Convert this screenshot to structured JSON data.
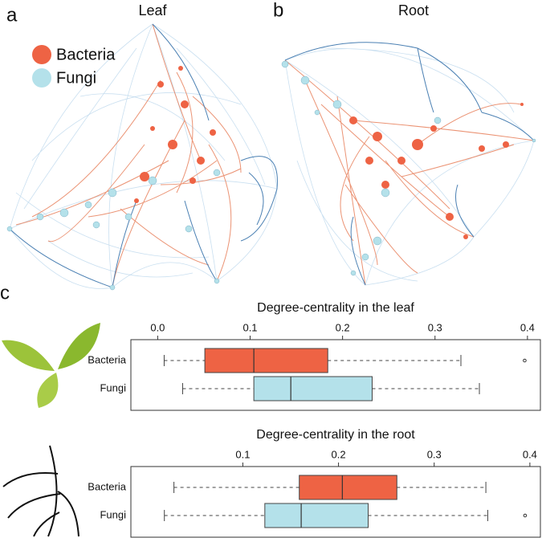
{
  "networks": [
    {
      "label": "a",
      "title": "Leaf"
    },
    {
      "label": "b",
      "title": "Root"
    }
  ],
  "legend": [
    {
      "name": "Bacteria",
      "color": "#ee6344"
    },
    {
      "name": "Fungi",
      "color": "#b4e1ea"
    }
  ],
  "panel_c_label": "c",
  "chart_data": [
    {
      "type": "box",
      "title": "Degree-centrality in the leaf",
      "xlim": [
        -0.029,
        0.414
      ],
      "xticks": [
        {
          "value": 0,
          "label": "0.0"
        },
        0.1,
        0.2,
        0.3,
        0.4
      ],
      "series": [
        {
          "name": "Bacteria",
          "color": "#ee6344",
          "whislo": 0.007,
          "q1": 0.051,
          "med": 0.104,
          "q3": 0.184,
          "whishi": 0.328,
          "outliers": [
            0.397
          ]
        },
        {
          "name": "Fungi",
          "color": "#b4e1ea",
          "whislo": 0.027,
          "q1": 0.104,
          "med": 0.144,
          "q3": 0.232,
          "whishi": 0.348
        }
      ]
    },
    {
      "type": "box",
      "title": "Degree-centrality in the root",
      "xlim": [
        -0.017,
        0.411
      ],
      "xticks": [
        0.1,
        0.2,
        0.3,
        0.4
      ],
      "series": [
        {
          "name": "Bacteria",
          "color": "#ee6344",
          "whislo": 0.028,
          "q1": 0.159,
          "med": 0.204,
          "q3": 0.261,
          "whishi": 0.354
        },
        {
          "name": "Fungi",
          "color": "#b4e1ea",
          "whislo": 0.018,
          "q1": 0.123,
          "med": 0.161,
          "q3": 0.231,
          "whishi": 0.356,
          "outliers": [
            0.395
          ]
        }
      ]
    }
  ]
}
